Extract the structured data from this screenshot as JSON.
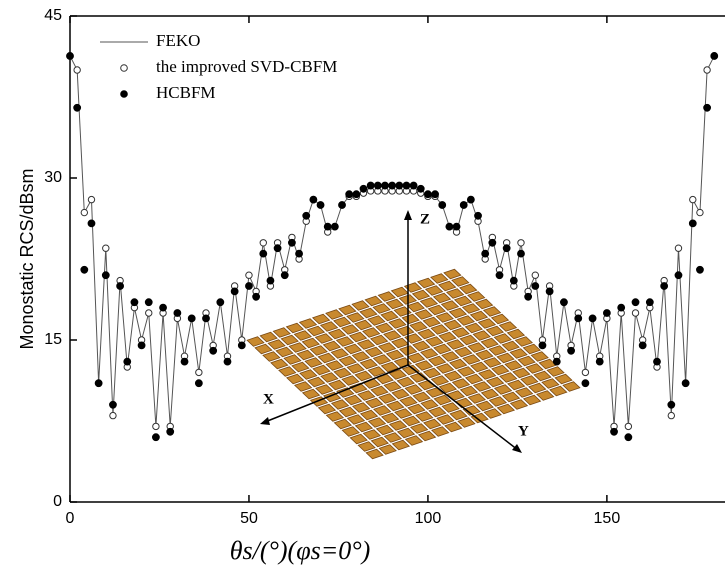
{
  "chart_data": {
    "type": "line",
    "xlabel": "θs/(°)(φs=0°)",
    "ylabel": "Monostatic RCS/dBsm",
    "annotations": [
      "X",
      "Y",
      "Z"
    ],
    "xlim": [
      0,
      183
    ],
    "ylim": [
      0,
      45
    ],
    "xticks": [
      0,
      50,
      100,
      150
    ],
    "yticks": [
      0,
      15,
      30,
      45
    ],
    "legend": "upper left",
    "x": [
      0,
      2,
      4,
      6,
      8,
      10,
      12,
      14,
      16,
      18,
      20,
      22,
      24,
      26,
      28,
      30,
      32,
      34,
      36,
      38,
      40,
      42,
      44,
      46,
      48,
      50,
      52,
      54,
      56,
      58,
      60,
      62,
      64,
      66,
      68,
      70,
      72,
      74,
      76,
      78,
      80,
      82,
      84,
      86,
      88,
      90,
      92,
      94,
      96,
      98,
      100,
      102,
      104,
      106,
      108,
      110,
      112,
      114,
      116,
      118,
      120,
      122,
      124,
      126,
      128,
      130,
      132,
      134,
      136,
      138,
      140,
      142,
      144,
      146,
      148,
      150,
      152,
      154,
      156,
      158,
      160,
      162,
      164,
      166,
      168,
      170,
      172,
      174,
      176,
      178,
      180
    ],
    "series": [
      {
        "name": "FEKO",
        "color": "#555555",
        "marker": "none",
        "values": [
          41.3,
          40,
          26.8,
          28,
          11,
          23.5,
          8,
          20.5,
          12.5,
          18,
          15,
          17.5,
          7,
          17.5,
          7,
          17,
          13.5,
          17,
          12,
          17.5,
          14.5,
          18.5,
          13.5,
          20,
          15,
          21,
          19.5,
          24,
          20,
          24,
          21.5,
          24.5,
          22.5,
          26,
          28,
          27.5,
          25,
          25.5,
          27.5,
          28.3,
          28.3,
          28.6,
          28.8,
          28.8,
          28.8,
          28.8,
          28.8,
          28.8,
          28.8,
          28.6,
          28.3,
          28.3,
          27.5,
          25.5,
          25,
          27.5,
          28,
          26,
          22.5,
          24.5,
          21.5,
          24,
          20,
          24,
          19.5,
          21,
          15,
          20,
          13.5,
          18.5,
          14.5,
          17.5,
          12,
          17,
          13.5,
          17,
          7,
          17.5,
          7,
          17.5,
          15,
          18,
          12.5,
          20.5,
          8,
          23.5,
          11,
          28,
          26.8,
          40,
          41.3
        ]
      },
      {
        "name": "the improved SVD-CBFM",
        "color": "#333333",
        "marker": "open-circle",
        "values": [
          41.3,
          40,
          26.8,
          28,
          11,
          23.5,
          8,
          20.5,
          12.5,
          18,
          15,
          17.5,
          7,
          17.5,
          7,
          17,
          13.5,
          17,
          12,
          17.5,
          14.5,
          18.5,
          13.5,
          20,
          15,
          21,
          19.5,
          24,
          20,
          24,
          21.5,
          24.5,
          22.5,
          26,
          28,
          27.5,
          25,
          25.5,
          27.5,
          28.3,
          28.3,
          28.6,
          28.8,
          28.8,
          28.8,
          28.8,
          28.8,
          28.8,
          28.8,
          28.6,
          28.3,
          28.3,
          27.5,
          25.5,
          25,
          27.5,
          28,
          26,
          22.5,
          24.5,
          21.5,
          24,
          20,
          24,
          19.5,
          21,
          15,
          20,
          13.5,
          18.5,
          14.5,
          17.5,
          12,
          17,
          13.5,
          17,
          7,
          17.5,
          7,
          17.5,
          15,
          18,
          12.5,
          20.5,
          8,
          23.5,
          11,
          28,
          26.8,
          40,
          41.3
        ]
      },
      {
        "name": "HCBFM",
        "color": "#000000",
        "marker": "filled-circle",
        "values": [
          41.3,
          36.5,
          21.5,
          25.8,
          11,
          21,
          9,
          20,
          13,
          18.5,
          14.5,
          18.5,
          6,
          18,
          6.5,
          17.5,
          13,
          17,
          11,
          17,
          14,
          18.5,
          13,
          19.5,
          14.5,
          20,
          19,
          23,
          20.5,
          23.5,
          21,
          24,
          23,
          26.5,
          28,
          27.5,
          25.5,
          25.5,
          27.5,
          28.5,
          28.5,
          29,
          29.3,
          29.3,
          29.3,
          29.3,
          29.3,
          29.3,
          29.3,
          29,
          28.5,
          28.5,
          27.5,
          25.5,
          25.5,
          27.5,
          28,
          26.5,
          23,
          24,
          21,
          23.5,
          20.5,
          23,
          19,
          20,
          14.5,
          19.5,
          13,
          18.5,
          14,
          17,
          11,
          17,
          13,
          17.5,
          6.5,
          18,
          6,
          18.5,
          14.5,
          18.5,
          13,
          20,
          9,
          21,
          11,
          25.8,
          21.5,
          36.5,
          41.3
        ]
      }
    ]
  }
}
